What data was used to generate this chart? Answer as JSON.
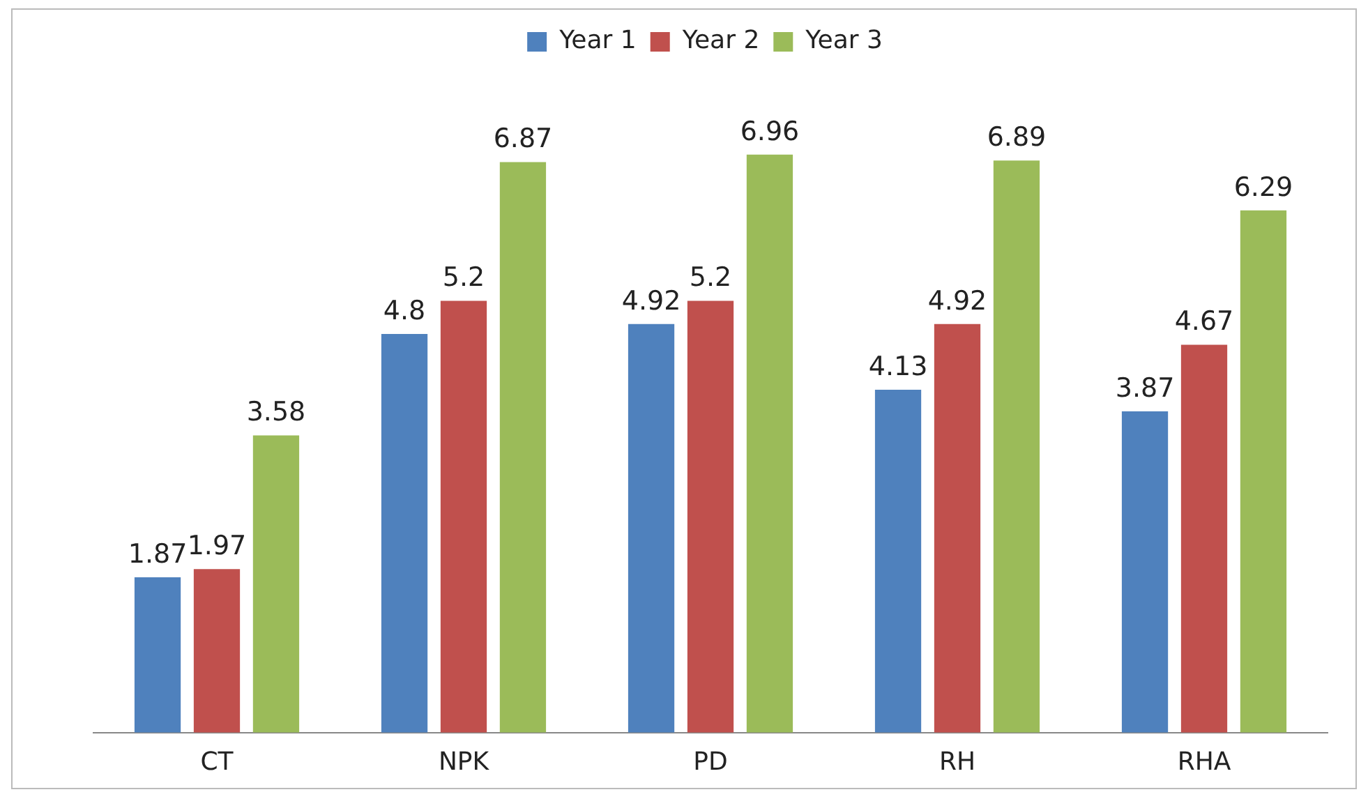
{
  "chart_data": {
    "type": "bar",
    "categories": [
      "CT",
      "NPK",
      "PD",
      "RH",
      "RHA"
    ],
    "series": [
      {
        "name": "Year 1",
        "color": "#4f81bd",
        "values": [
          1.87,
          4.8,
          4.92,
          4.13,
          3.87
        ]
      },
      {
        "name": "Year 2",
        "color": "#c0504d",
        "values": [
          1.97,
          5.2,
          5.2,
          4.92,
          4.67
        ]
      },
      {
        "name": "Year 3",
        "color": "#9bbb59",
        "values": [
          3.58,
          6.87,
          6.96,
          6.89,
          6.29
        ]
      }
    ],
    "data_labels": true,
    "legend": "top",
    "grid": false,
    "tick_labels": "x"
  }
}
